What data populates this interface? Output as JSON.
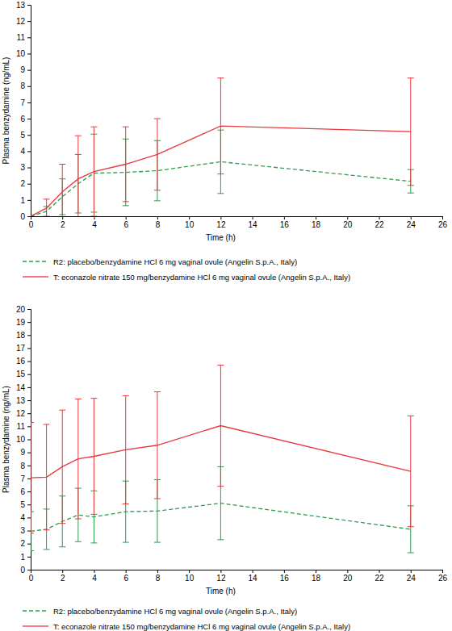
{
  "chart_data": [
    {
      "type": "line",
      "x_label": "Time (h)",
      "y_label": "Plasma benzydamine (ng/mL)",
      "x": [
        0,
        1,
        2,
        3,
        4,
        6,
        8,
        12,
        24
      ],
      "xlim": [
        0,
        26
      ],
      "xticks": [
        0,
        2,
        4,
        6,
        8,
        10,
        12,
        14,
        16,
        18,
        20,
        22,
        24,
        26
      ],
      "ylim": [
        0,
        13
      ],
      "yticks": [
        0,
        1,
        2,
        3,
        4,
        5,
        6,
        7,
        8,
        9,
        10,
        11,
        12,
        13
      ],
      "legend": "bottom",
      "series": [
        {
          "name": "R2: placebo/benzydamine HCl 6 mg vaginal ovule (Angelin S.p.A., Italy)",
          "color": "#2e9a4e",
          "line_style": "dashed",
          "values": [
            0,
            0.3,
            1.2,
            2.0,
            2.65,
            2.7,
            2.8,
            3.35,
            2.15
          ],
          "errors": [
            0,
            0.3,
            1.1,
            1.8,
            2.4,
            2.05,
            1.85,
            1.95,
            0.72
          ]
        },
        {
          "name": "T: econazole nitrate 150 mg/benzydamine HCl 6 mg vaginal ovule (Angelin S.p.A., Italy)",
          "color": "#e8383d",
          "line_style": "solid",
          "values": [
            0,
            0.5,
            1.5,
            2.3,
            2.75,
            3.2,
            3.8,
            5.55,
            5.2
          ],
          "errors": [
            0,
            0.55,
            1.7,
            2.65,
            2.75,
            2.3,
            2.2,
            2.95,
            3.3
          ]
        }
      ]
    },
    {
      "type": "line",
      "x_label": "Time (h)",
      "y_label": "Plasma benzydamine (ng/mL)",
      "x": [
        0,
        1,
        2,
        3,
        4,
        6,
        8,
        12,
        24
      ],
      "xlim": [
        0,
        26
      ],
      "xticks": [
        0,
        2,
        4,
        6,
        8,
        10,
        12,
        14,
        16,
        18,
        20,
        22,
        24,
        26
      ],
      "ylim": [
        0,
        20
      ],
      "yticks": [
        0,
        1,
        2,
        3,
        4,
        5,
        6,
        7,
        8,
        9,
        10,
        11,
        12,
        13,
        14,
        15,
        16,
        17,
        18,
        19,
        20
      ],
      "legend": "bottom",
      "series": [
        {
          "name": "R2: placebo/benzydamine HCl 6 mg vaginal ovule (Angelin S.p.A., Italy)",
          "color": "#2e9a4e",
          "line_style": "dashed",
          "values": [
            2.95,
            3.1,
            3.7,
            4.2,
            4.05,
            4.45,
            4.5,
            5.1,
            3.1
          ],
          "errors": [
            1.5,
            1.55,
            1.95,
            2.05,
            2.0,
            2.35,
            2.4,
            2.8,
            1.8
          ]
        },
        {
          "name": "T: econazole nitrate 150 mg/benzydamine HCl 6 mg vaginal ovule (Angelin S.p.A., Italy)",
          "color": "#e8383d",
          "line_style": "solid",
          "values": [
            7.05,
            7.1,
            7.9,
            8.5,
            8.7,
            9.2,
            9.55,
            11.05,
            7.55
          ],
          "errors": [
            4.25,
            4.05,
            4.35,
            4.6,
            4.45,
            4.15,
            4.1,
            4.65,
            4.25
          ]
        }
      ]
    }
  ]
}
